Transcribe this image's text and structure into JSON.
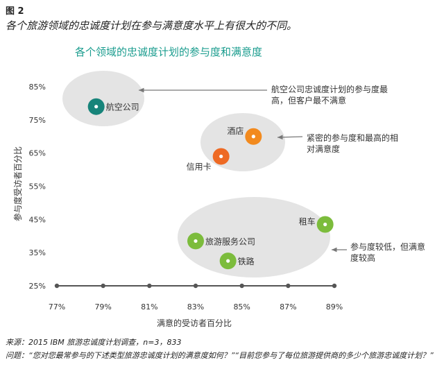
{
  "figure_label": "图 2",
  "headline": "各个旅游领域的忠诚度计划在参与满意度水平上有很大的不同。",
  "chart_data": {
    "type": "scatter",
    "title": "各个领域的忠诚度计划的参与度和满意度",
    "xlabel": "满意的受访者百分比",
    "ylabel": "参与度受访者百分比",
    "xlim": [
      77,
      89
    ],
    "ylim": [
      25,
      85
    ],
    "xticks": [
      "77%",
      "79%",
      "81%",
      "83%",
      "85%",
      "87%",
      "89%"
    ],
    "yticks": [
      "85%",
      "75%",
      "65%",
      "55%",
      "45%",
      "35%",
      "25%"
    ],
    "points": [
      {
        "label": "航空公司",
        "x": 78.7,
        "y": 79,
        "color": "#17847a"
      },
      {
        "label": "酒店",
        "x": 85.5,
        "y": 70,
        "color": "#f28a1e"
      },
      {
        "label": "信用卡",
        "x": 84.1,
        "y": 64,
        "color": "#ee6a24"
      },
      {
        "label": "租车",
        "x": 88.6,
        "y": 43.5,
        "color": "#7cbc3c"
      },
      {
        "label": "旅游服务公司",
        "x": 83.0,
        "y": 38.5,
        "color": "#7cbc3c"
      },
      {
        "label": "铁路",
        "x": 84.4,
        "y": 32.5,
        "color": "#7cbc3c"
      }
    ],
    "annotations": [
      "航空公司忠诚度计划的参与度最高，但客户最不满意",
      "紧密的参与度和最高的相对满意度",
      "参与度较低，但满意度较高"
    ],
    "grid": false,
    "legend": "none"
  },
  "source": "来源：2015 IBM 旅游忠诚度计划调查，n=3，833",
  "question": "问题：“您对您最常参与的下述类型旅游忠诚度计划的满意度如何？”“目前您参与了每位旅游提供商的多少个旅游忠诚度计划？”"
}
